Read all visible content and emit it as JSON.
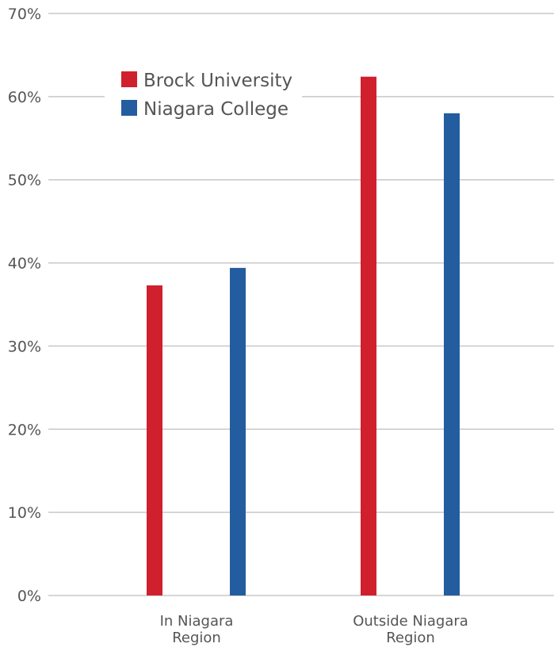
{
  "chart_data": {
    "type": "bar",
    "categories": [
      [
        "In Niagara",
        "Region"
      ],
      [
        "Outside Niagara",
        "Region"
      ]
    ],
    "series": [
      {
        "name": "Brock University",
        "color": "#d0202e",
        "values": [
          37.3,
          62.4
        ]
      },
      {
        "name": "Niagara College",
        "color": "#235d9f",
        "values": [
          39.4,
          58.0
        ]
      }
    ],
    "ylim": [
      0,
      70
    ],
    "yticks": [
      0,
      10,
      20,
      30,
      40,
      50,
      60,
      70
    ],
    "tick_suffix": "%",
    "grid": true,
    "legend_position": "top-left"
  }
}
